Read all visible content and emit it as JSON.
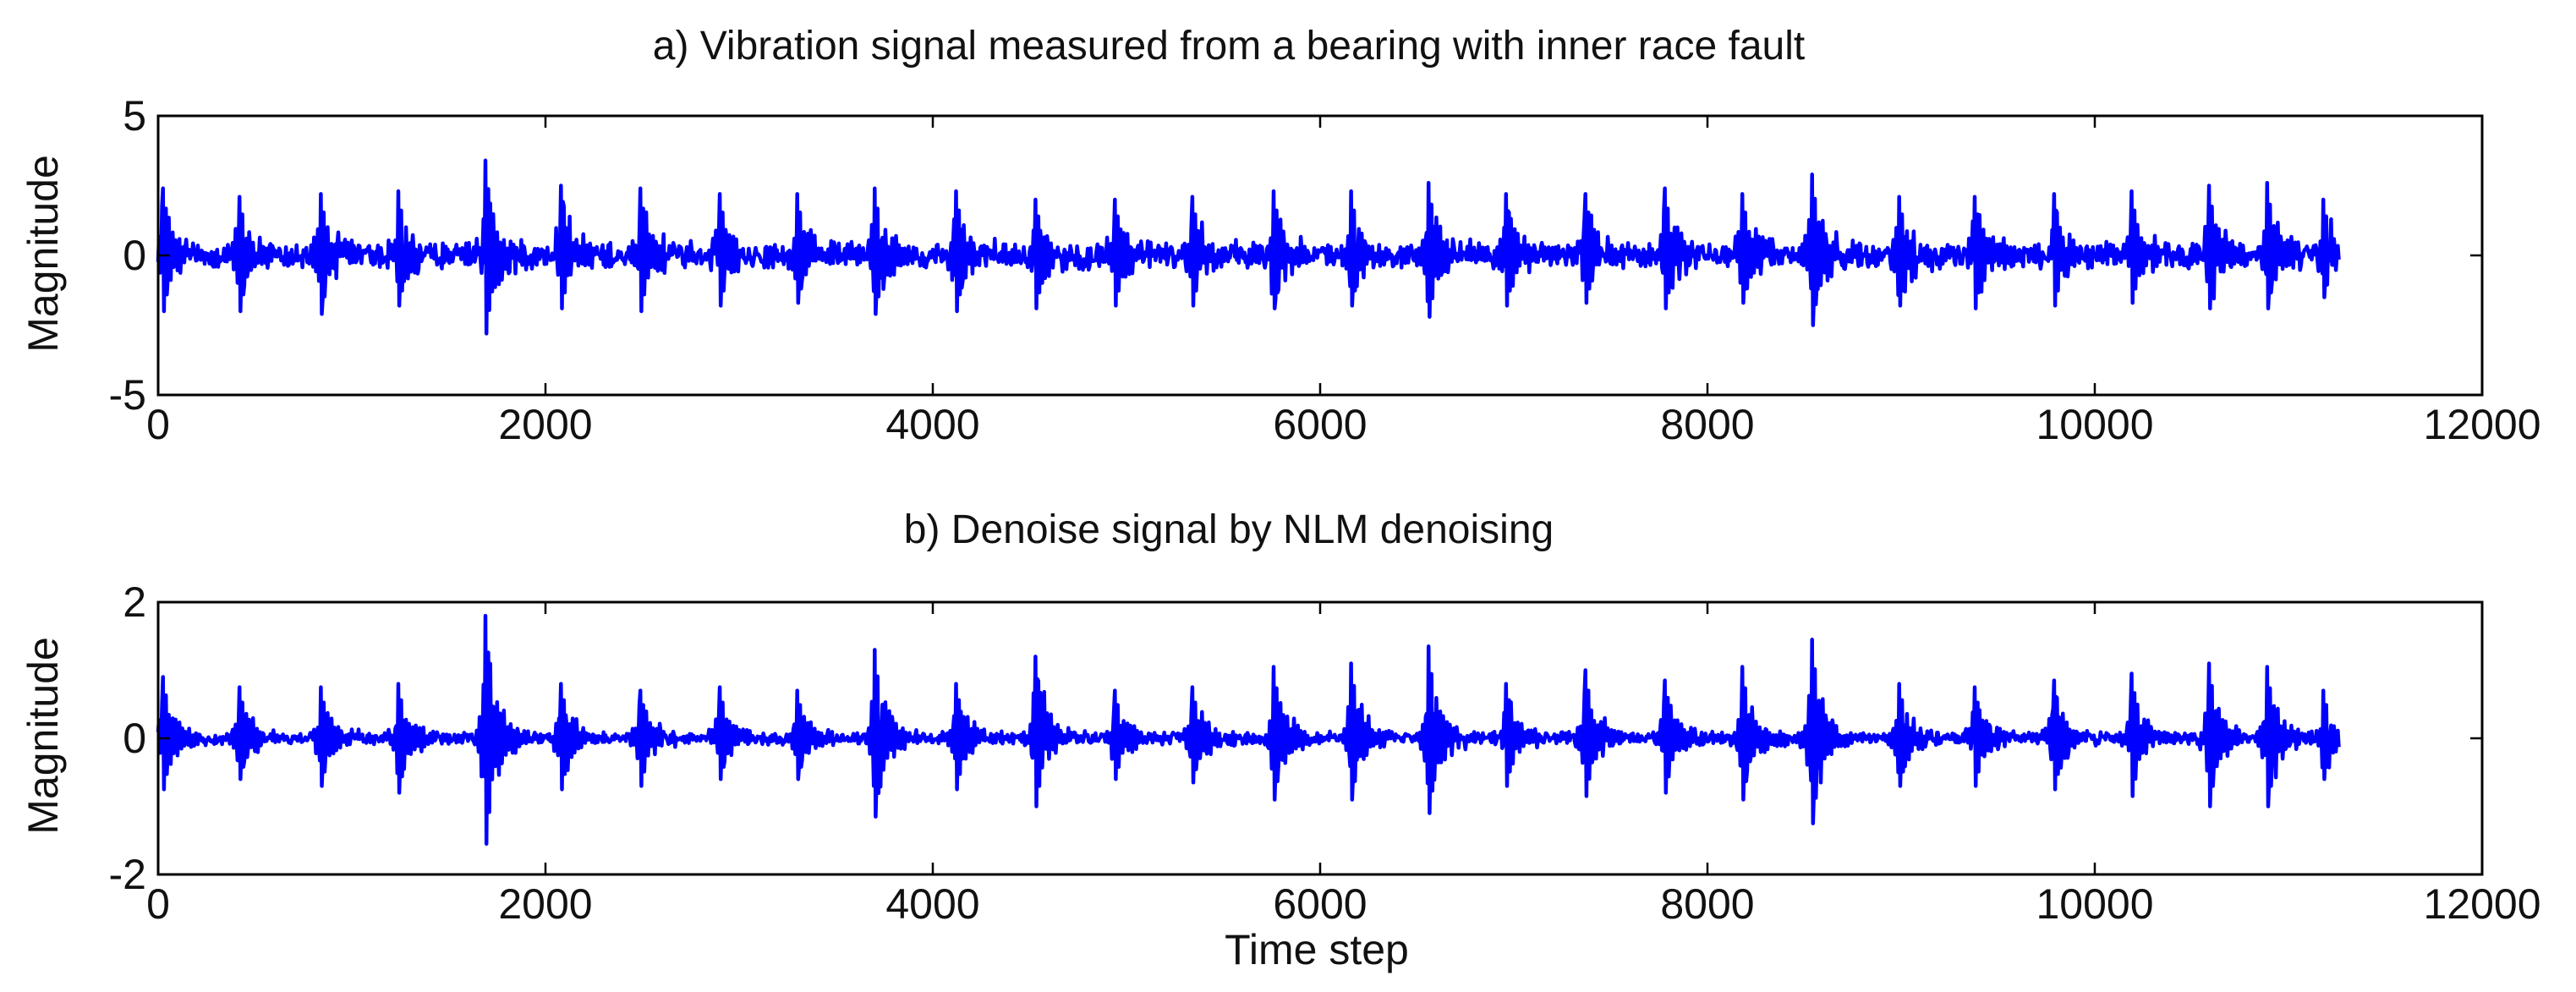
{
  "figure": {
    "xlabel": "Time step"
  },
  "chart_data": [
    {
      "type": "line",
      "id": "a",
      "title": "a) Vibration signal measured from a bearing with inner race fault",
      "xlabel": "",
      "ylabel": "Magnitude",
      "xlim": [
        0,
        12000
      ],
      "ylim": [
        -5,
        5
      ],
      "xticks": [
        0,
        2000,
        4000,
        6000,
        8000,
        10000,
        12000
      ],
      "xtick_labels": [
        "0",
        "2000",
        "4000",
        "6000",
        "8000",
        "10000",
        "12000"
      ],
      "yticks": [
        5,
        0,
        -5
      ],
      "ytick_labels": [
        "5",
        "0",
        "-5"
      ],
      "grid": false,
      "color": "#0000ff",
      "signal": {
        "length": 11264,
        "baseline_noise": 0.35,
        "impulse_times": [
          25,
          420,
          840,
          1240,
          1690,
          2080,
          2490,
          2900,
          3300,
          3700,
          4120,
          4530,
          4940,
          5340,
          5760,
          6160,
          6560,
          6960,
          7370,
          7780,
          8180,
          8540,
          8990,
          9380,
          9790,
          10190,
          10590,
          10890,
          11180
        ],
        "impulse_max": [
          2.4,
          2.1,
          2.2,
          2.3,
          3.4,
          2.5,
          2.4,
          2.2,
          2.2,
          2.4,
          2.3,
          2.0,
          2.0,
          2.1,
          2.3,
          2.3,
          2.6,
          2.2,
          2.2,
          2.4,
          2.2,
          2.9,
          2.1,
          2.1,
          2.2,
          2.3,
          2.5,
          2.6,
          2.0
        ],
        "impulse_min": [
          -2.0,
          -2.0,
          -2.1,
          -1.8,
          -2.8,
          -1.9,
          -2.0,
          -1.8,
          -1.7,
          -2.1,
          -2.0,
          -1.9,
          -1.8,
          -1.8,
          -1.9,
          -1.8,
          -2.2,
          -1.8,
          -1.7,
          -1.9,
          -1.7,
          -2.5,
          -1.8,
          -1.9,
          -1.8,
          -1.7,
          -1.9,
          -1.9,
          -1.5
        ]
      }
    },
    {
      "type": "line",
      "id": "b",
      "title": "b) Denoise signal by NLM denoising",
      "xlabel": "Time step",
      "ylabel": "Magnitude",
      "xlim": [
        0,
        12000
      ],
      "ylim": [
        -2,
        2
      ],
      "xticks": [
        0,
        2000,
        4000,
        6000,
        8000,
        10000,
        12000
      ],
      "xtick_labels": [
        "0",
        "2000",
        "4000",
        "6000",
        "8000",
        "10000",
        "12000"
      ],
      "yticks": [
        2,
        0,
        -2
      ],
      "ytick_labels": [
        "2",
        "0",
        "-2"
      ],
      "grid": false,
      "color": "#0000ff",
      "signal": {
        "length": 11264,
        "baseline_noise": 0.07,
        "impulse_times": [
          25,
          420,
          840,
          1240,
          1690,
          2080,
          2490,
          2900,
          3300,
          3700,
          4120,
          4530,
          4940,
          5340,
          5760,
          6160,
          6560,
          6960,
          7370,
          7780,
          8180,
          8540,
          8990,
          9380,
          9790,
          10190,
          10590,
          10890,
          11180
        ],
        "impulse_max": [
          0.9,
          0.75,
          0.75,
          0.8,
          1.8,
          0.8,
          0.7,
          0.75,
          0.7,
          1.3,
          0.8,
          1.2,
          0.7,
          0.75,
          1.05,
          1.1,
          1.35,
          0.8,
          1.0,
          0.85,
          1.05,
          1.45,
          0.8,
          0.75,
          0.85,
          0.95,
          1.1,
          1.05,
          0.7
        ],
        "impulse_min": [
          -0.75,
          -0.6,
          -0.7,
          -0.8,
          -1.55,
          -0.75,
          -0.7,
          -0.6,
          -0.6,
          -1.15,
          -0.75,
          -1.0,
          -0.6,
          -0.65,
          -0.9,
          -0.9,
          -1.1,
          -0.7,
          -0.85,
          -0.8,
          -0.9,
          -1.25,
          -0.7,
          -0.7,
          -0.75,
          -0.85,
          -1.0,
          -1.0,
          -0.6
        ]
      }
    }
  ]
}
